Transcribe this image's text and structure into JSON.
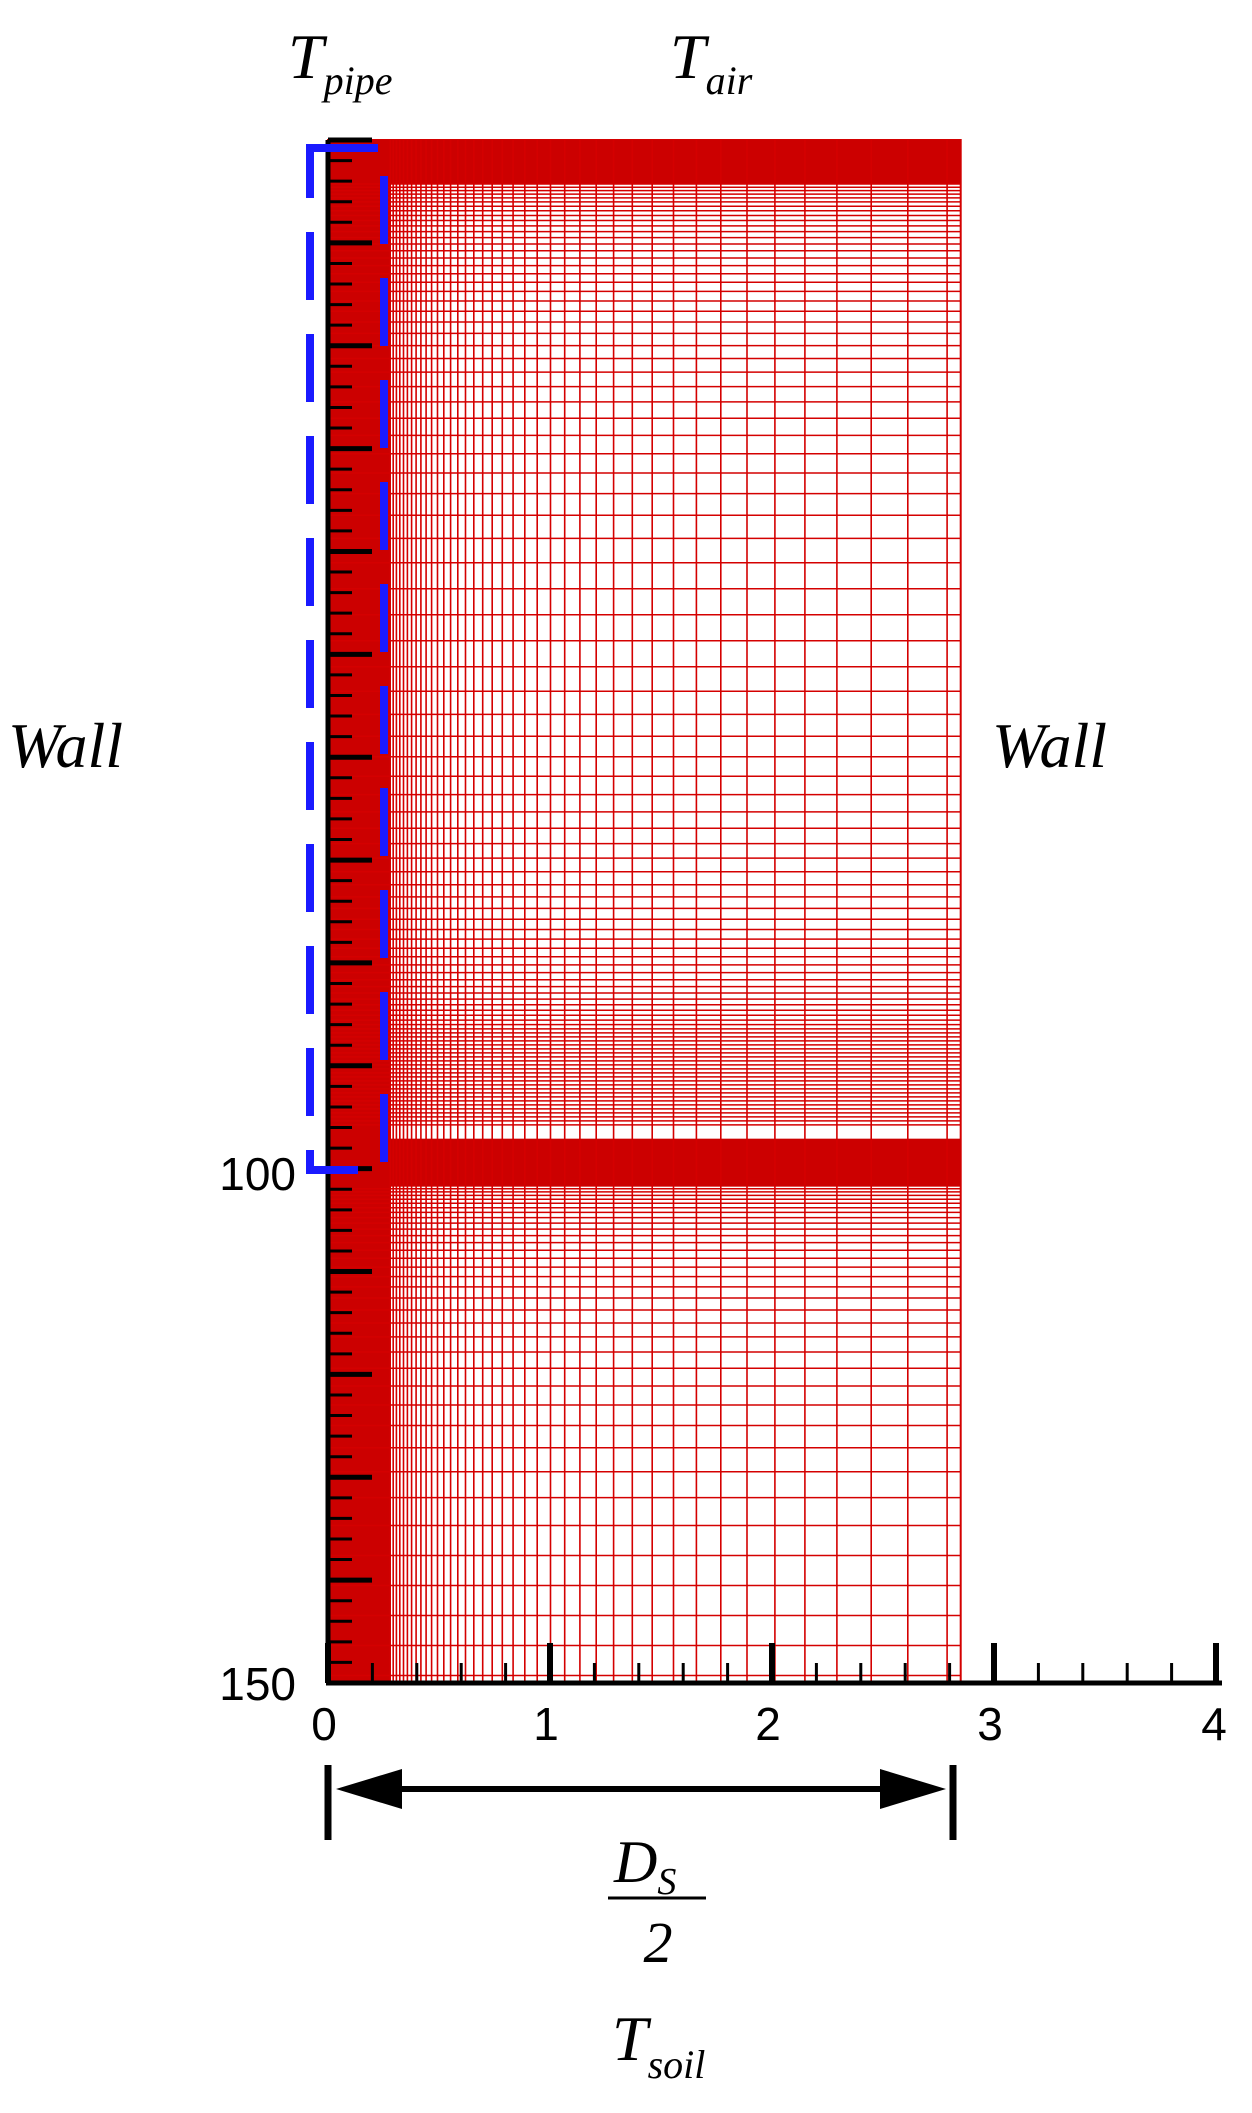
{
  "labels": {
    "t_pipe_main": "T",
    "t_pipe_sub": "pipe",
    "t_air_main": "T",
    "t_air_sub": "air",
    "t_soil_main": "T",
    "t_soil_sub": "soil",
    "wall_left": "Wall",
    "wall_right": "Wall",
    "ds_main": "D",
    "ds_sub": "S",
    "ds_denominator": "2"
  },
  "axes": {
    "y_ticks": [
      "100",
      "150"
    ],
    "x_ticks": [
      "0",
      "1",
      "2",
      "3",
      "4"
    ]
  },
  "colors": {
    "mesh": "#d40000",
    "mesh_dense": "#cc0000",
    "highlight_box": "#1a1aff",
    "axis": "#000000"
  },
  "domain": {
    "mesh_x_extent": 2.85,
    "pipe_region_x_extent": 0.28,
    "dense_band_depths": [
      0,
      100
    ],
    "x_axis_max": 4,
    "y_axis_max": 150
  }
}
